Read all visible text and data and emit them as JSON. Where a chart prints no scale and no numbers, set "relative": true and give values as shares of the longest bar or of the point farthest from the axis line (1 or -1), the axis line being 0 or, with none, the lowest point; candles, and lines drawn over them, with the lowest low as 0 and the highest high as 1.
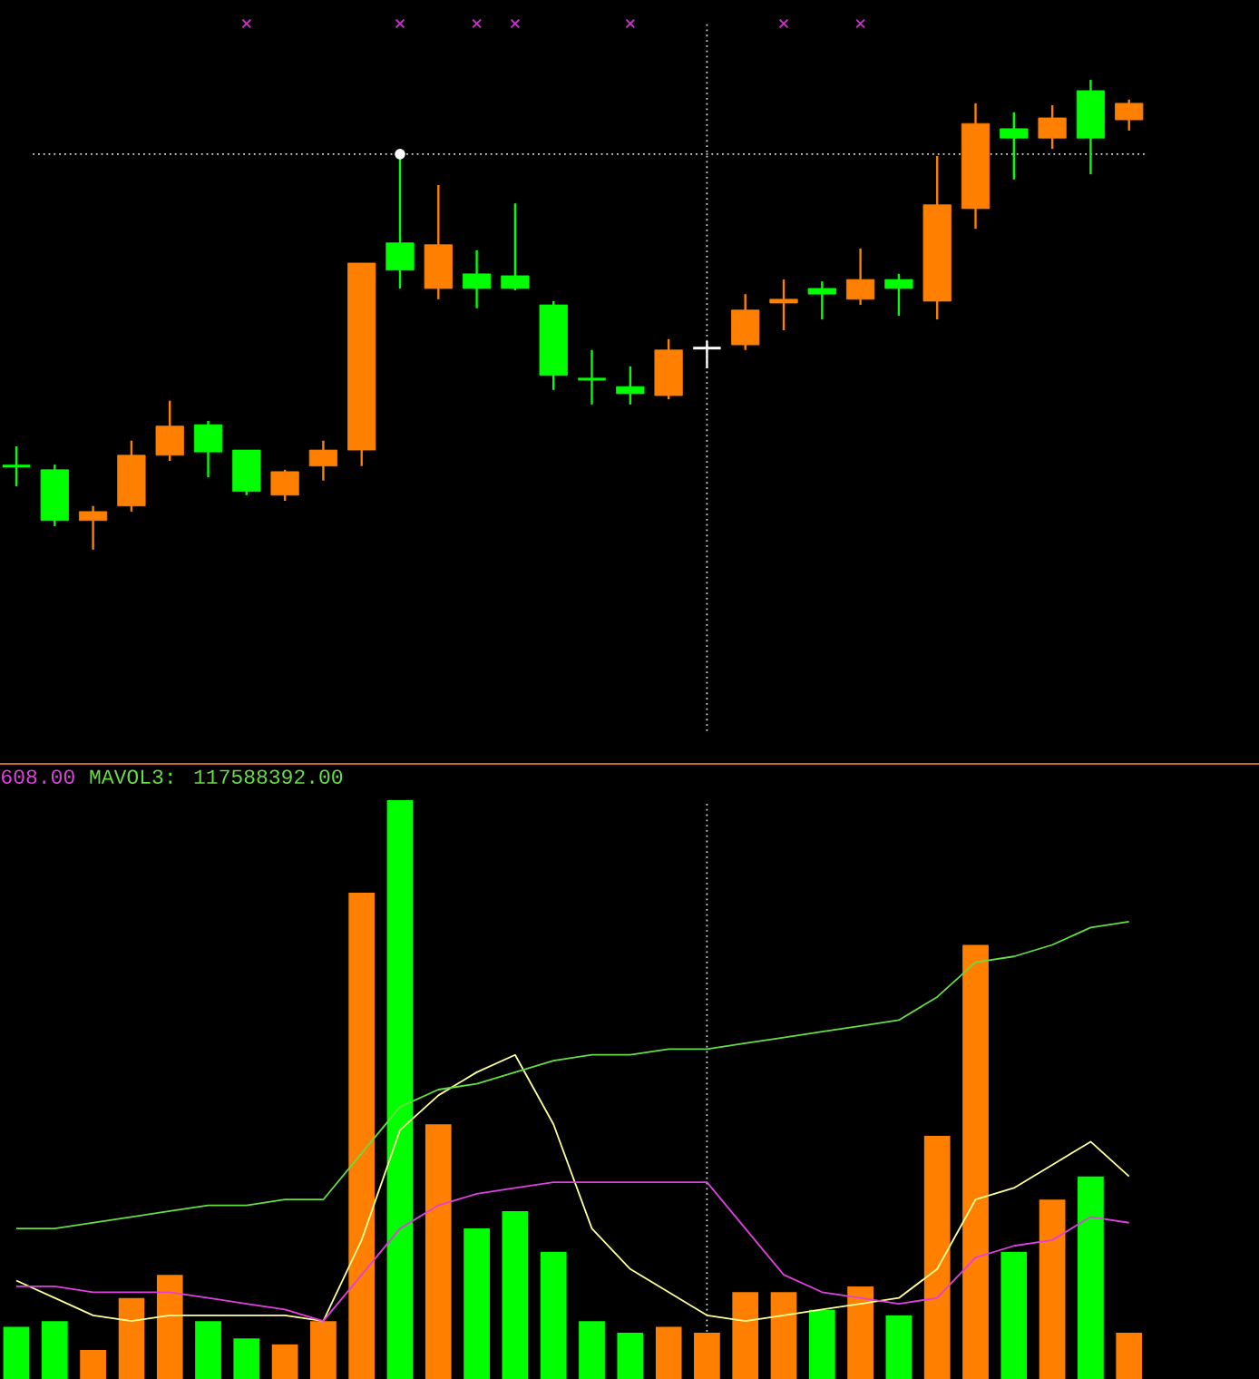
{
  "chart_data": [
    {
      "type": "candlestick",
      "relative": true,
      "categories": [
        null,
        null,
        null,
        null,
        null,
        null,
        null,
        null,
        null,
        null,
        null,
        null,
        null,
        null,
        null,
        null,
        null,
        null,
        null,
        null,
        null,
        null,
        null,
        null,
        null,
        null,
        null,
        null,
        null,
        null
      ],
      "ohlc": [
        [
          0.178,
          0.22,
          0.135,
          0.178
        ],
        [
          0.17,
          0.181,
          0.05,
          0.062
        ],
        [
          0.062,
          0.093,
          0,
          0.081
        ],
        [
          0.093,
          0.232,
          0.081,
          0.201
        ],
        [
          0.201,
          0.317,
          0.189,
          0.263
        ],
        [
          0.266,
          0.274,
          0.154,
          0.208
        ],
        [
          0.212,
          0.212,
          0.116,
          0.124
        ],
        [
          0.116,
          0.17,
          0.104,
          0.166
        ],
        [
          0.178,
          0.232,
          0.147,
          0.212
        ],
        [
          0.212,
          0.61,
          0.178,
          0.61
        ],
        [
          0.653,
          0.842,
          0.556,
          0.595
        ],
        [
          0.556,
          0.776,
          0.533,
          0.649
        ],
        [
          0.587,
          0.637,
          0.514,
          0.556
        ],
        [
          0.583,
          0.737,
          0.552,
          0.556
        ],
        [
          0.521,
          0.529,
          0.34,
          0.371
        ],
        [
          0.363,
          0.425,
          0.309,
          0.363
        ],
        [
          0.347,
          0.39,
          0.309,
          0.332
        ],
        [
          0.328,
          0.448,
          0.32,
          0.425
        ],
        [
          0.429,
          0.444,
          0.386,
          0.429
        ],
        [
          0.436,
          0.544,
          0.425,
          0.51
        ],
        [
          0.525,
          0.575,
          0.467,
          0.533
        ],
        [
          0.556,
          0.571,
          0.49,
          0.544
        ],
        [
          0.533,
          0.641,
          0.521,
          0.575
        ],
        [
          0.575,
          0.587,
          0.498,
          0.556
        ],
        [
          0.529,
          0.838,
          0.49,
          0.734
        ],
        [
          0.726,
          0.95,
          0.683,
          0.907
        ],
        [
          0.896,
          0.931,
          0.788,
          0.876
        ],
        [
          0.876,
          0.946,
          0.853,
          0.919
        ],
        [
          0.977,
          1,
          0.799,
          0.876
        ],
        [
          0.915,
          0.958,
          0.892,
          0.95
        ]
      ],
      "colors": [
        "#00ff00",
        "#00ff00",
        "#ff8000",
        "#ff8000",
        "#ff8000",
        "#00ff00",
        "#00ff00",
        "#ff8000",
        "#ff8000",
        "#ff8000",
        "#00ff00",
        "#ff8000",
        "#00ff00",
        "#00ff00",
        "#00ff00",
        "#00ff00",
        "#00ff00",
        "#ff8000",
        "#ffffff",
        "#ff8000",
        "#ff8000",
        "#00ff00",
        "#ff8000",
        "#00ff00",
        "#ff8000",
        "#ff8000",
        "#00ff00",
        "#ff8000",
        "#00ff00",
        "#ff8000"
      ],
      "series": [
        {
          "type": "scatter",
          "color": "#ffffff",
          "marker": "circle",
          "values": [
            null,
            null,
            null,
            null,
            null,
            null,
            null,
            null,
            null,
            null,
            0.842,
            null,
            null,
            null,
            null,
            null,
            null,
            null,
            null,
            null,
            null,
            null,
            null,
            null,
            null,
            null,
            null,
            null,
            null,
            null
          ]
        }
      ],
      "ref_lines": [
        {
          "axis": "y",
          "value": 0.842,
          "color": "#c8e0e0",
          "line_style": "dotted"
        }
      ]
    },
    {
      "type": "bar",
      "relative": true,
      "categories": [
        null,
        null,
        null,
        null,
        null,
        null,
        null,
        null,
        null,
        null,
        null,
        null,
        null,
        null,
        null,
        null,
        null,
        null,
        null,
        null,
        null,
        null,
        null,
        null,
        null,
        null,
        null,
        null,
        null,
        null
      ],
      "series": [
        {
          "colors": [
            "#00ff00",
            "#00ff00",
            "#ff8000",
            "#ff8000",
            "#ff8000",
            "#00ff00",
            "#00ff00",
            "#ff8000",
            "#ff8000",
            "#ff8000",
            "#00ff00",
            "#ff8000",
            "#00ff00",
            "#00ff00",
            "#00ff00",
            "#00ff00",
            "#00ff00",
            "#ff8000",
            "#ff8000",
            "#ff8000",
            "#ff8000",
            "#00ff00",
            "#ff8000",
            "#00ff00",
            "#ff8000",
            "#ff8000",
            "#00ff00",
            "#ff8000",
            "#00ff00",
            "#ff8000"
          ],
          "values": [
            0.09,
            0.1,
            0.05,
            0.14,
            0.18,
            0.1,
            0.07,
            0.06,
            0.1,
            0.84,
            1,
            0.44,
            0.26,
            0.29,
            0.22,
            0.1,
            0.08,
            0.09,
            0.08,
            0.15,
            0.15,
            0.12,
            0.16,
            0.11,
            0.42,
            0.75,
            0.22,
            0.31,
            0.35,
            0.08
          ]
        },
        {
          "type": "line",
          "color": "#ffff99",
          "values": [
            0.17,
            0.14,
            0.11,
            0.1,
            0.11,
            0.11,
            0.11,
            0.11,
            0.1,
            0.24,
            0.43,
            0.49,
            0.53,
            0.56,
            0.44,
            0.26,
            0.19,
            0.15,
            0.11,
            0.1,
            0.11,
            0.12,
            0.13,
            0.14,
            0.19,
            0.31,
            0.33,
            0.37,
            0.41,
            0.35
          ]
        },
        {
          "type": "line",
          "name": "608.00",
          "color": "#e040e0",
          "values": [
            0.16,
            0.16,
            0.15,
            0.15,
            0.15,
            0.14,
            0.13,
            0.12,
            0.1,
            0.18,
            0.26,
            0.3,
            0.32,
            0.33,
            0.34,
            0.34,
            0.34,
            0.34,
            0.34,
            0.26,
            0.18,
            0.15,
            0.14,
            0.13,
            0.14,
            0.21,
            0.23,
            0.24,
            0.28,
            0.27
          ]
        },
        {
          "type": "line",
          "name": "MAVOL3: 117588392.00",
          "color": "#66dd44",
          "values": [
            0.26,
            0.26,
            0.27,
            0.28,
            0.29,
            0.3,
            0.3,
            0.31,
            0.31,
            0.39,
            0.47,
            0.5,
            0.51,
            0.53,
            0.55,
            0.56,
            0.56,
            0.57,
            0.57,
            0.58,
            0.59,
            0.6,
            0.61,
            0.62,
            0.66,
            0.72,
            0.73,
            0.75,
            0.78,
            0.79
          ]
        }
      ],
      "legend": "top left"
    }
  ]
}
